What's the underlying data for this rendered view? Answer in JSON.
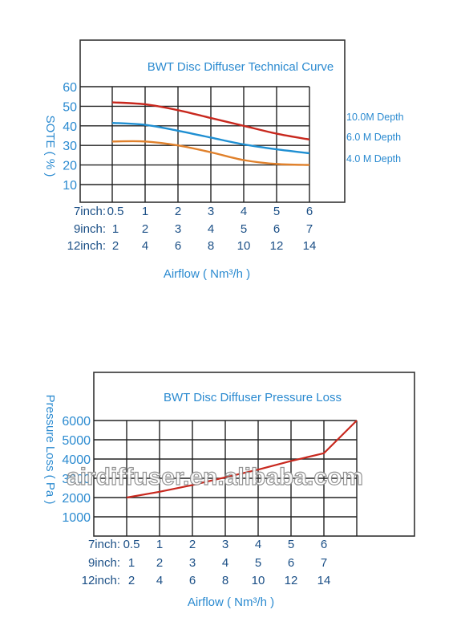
{
  "charts": {
    "technical": {
      "title": "BWT Disc Diffuser Technical Curve",
      "ylabel": "SOTE ( % )",
      "xlabel": "Airflow ( Nm³/h )"
    },
    "pressure": {
      "title": "BWT Disc Diffuser Pressure Loss",
      "ylabel": "Pressure Loss ( Pa )",
      "xlabel": "Airflow ( Nm³/h )"
    }
  },
  "watermark": "airdiffuser.en.alibaba.com",
  "colors": {
    "red": "#c8281e",
    "blue": "#1f8fd2",
    "orange": "#e0812c",
    "grid": "#222222",
    "text": "#2a8ad0",
    "axis_rows": "#1b4f86"
  },
  "chart_data": [
    {
      "type": "line",
      "title": "BWT Disc Diffuser Technical Curve",
      "ylabel": "SOTE ( % )",
      "xlabel": "Airflow ( Nm³/h )",
      "ylim": [
        0,
        60
      ],
      "y_ticks": [
        "60",
        "50",
        "40",
        "30",
        "20",
        "10"
      ],
      "x_rows": [
        {
          "label": "7inch:",
          "ticks": [
            "0.5",
            "1",
            "2",
            "3",
            "4",
            "5",
            "6"
          ]
        },
        {
          "label": "9inch:",
          "ticks": [
            "1",
            "2",
            "3",
            "4",
            "5",
            "6",
            "7"
          ]
        },
        {
          "label": "12inch:",
          "ticks": [
            "2",
            "4",
            "6",
            "8",
            "10",
            "12",
            "14"
          ]
        }
      ],
      "grid": true,
      "series": [
        {
          "name": "10.0M Depth",
          "color": "#c8281e",
          "x": [
            0.5,
            1,
            2,
            3,
            4,
            5,
            6
          ],
          "y": [
            52,
            51,
            48,
            44,
            40,
            36,
            33
          ]
        },
        {
          "name": "6.0 M Depth",
          "color": "#1f8fd2",
          "x": [
            0.5,
            1,
            2,
            3,
            4,
            5,
            6
          ],
          "y": [
            41.5,
            40.5,
            37.5,
            34,
            30.5,
            28,
            26
          ]
        },
        {
          "name": "4.0 M Depth",
          "color": "#e0812c",
          "x": [
            0.5,
            1,
            2,
            3,
            4,
            5,
            6
          ],
          "y": [
            32,
            32,
            30,
            26.5,
            22.5,
            20.5,
            20
          ]
        }
      ]
    },
    {
      "type": "line",
      "title": "BWT Disc Diffuser Pressure Loss",
      "ylabel": "Pressure Loss ( Pa )",
      "xlabel": "Airflow ( Nm³/h )",
      "ylim": [
        0,
        6000
      ],
      "y_ticks": [
        "6000",
        "5000",
        "4000",
        "3000",
        "2000",
        "1000"
      ],
      "x_rows": [
        {
          "label": "7inch:",
          "ticks": [
            "0.5",
            "1",
            "2",
            "3",
            "4",
            "5",
            "6"
          ]
        },
        {
          "label": "9inch:",
          "ticks": [
            "1",
            "2",
            "3",
            "4",
            "5",
            "6",
            "7"
          ]
        },
        {
          "label": "12inch:",
          "ticks": [
            "2",
            "4",
            "6",
            "8",
            "10",
            "12",
            "14"
          ]
        }
      ],
      "grid": true,
      "series": [
        {
          "color": "#c8281e",
          "x": [
            0.5,
            1,
            2,
            3,
            4,
            5,
            6,
            7
          ],
          "y": [
            2000,
            2300,
            2650,
            3050,
            3450,
            3900,
            4300,
            6000
          ]
        }
      ]
    }
  ]
}
